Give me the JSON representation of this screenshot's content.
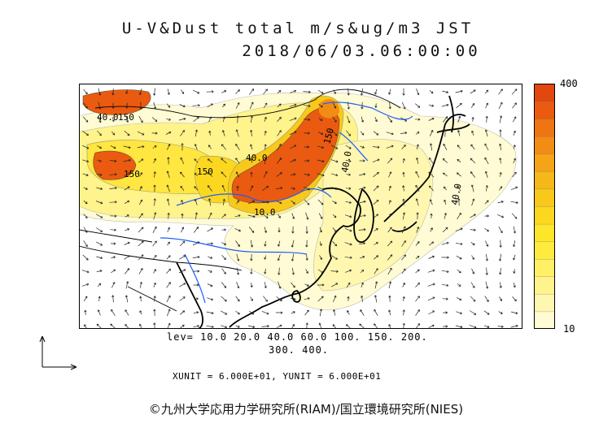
{
  "title": {
    "line1": "U-V&Dust total m/s&ug/m3 JST",
    "line2": "2018/06/03.06:00:00"
  },
  "colorbar": {
    "max_label": "400",
    "min_label": "10",
    "colors": [
      "#fffbd4",
      "#fff7b0",
      "#fff38c",
      "#fff066",
      "#ffeb3d",
      "#fde52a",
      "#fbd81f",
      "#f8c81b",
      "#f6b818",
      "#f4a416",
      "#f28c14",
      "#ef7412",
      "#ea5a10",
      "#e2470f"
    ]
  },
  "levels": {
    "line1": "lev= 10.0 20.0 40.0 60.0 100. 150. 200.",
    "line2": "300. 400."
  },
  "units_text": "XUNIT = 6.000E+01, YUNIT = 6.000E+01",
  "credit": "©九州大学応用力学研究所(RIAM)/国立環境研究所(NIES)",
  "contour_labels": [
    "40.0",
    "150",
    "40.0",
    "150",
    "150",
    "150",
    "10.0",
    "40.0",
    "40.0"
  ],
  "map_colors": {
    "land": "#ffffff",
    "coast": "#000000",
    "river": "#1e5bff",
    "vector": "#222222"
  }
}
